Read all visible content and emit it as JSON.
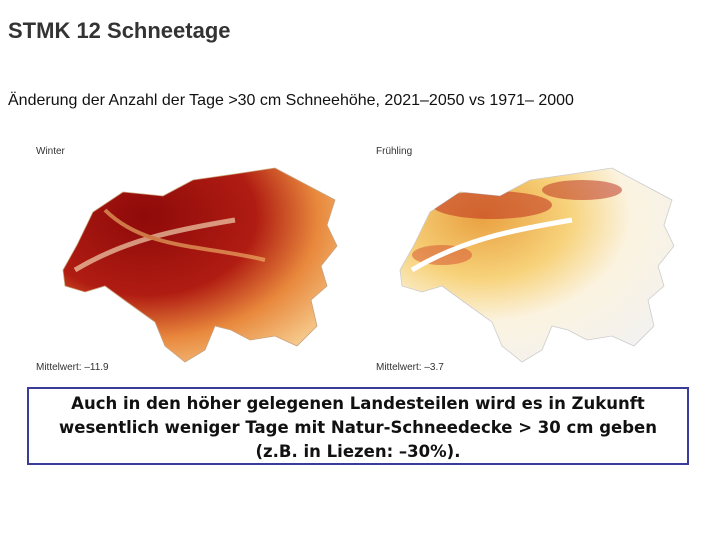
{
  "title": "STMK 12 Schneetage",
  "subtitle": "Änderung der Anzahl der Tage >30 cm Schneehöhe, 2021–2050 vs 1971– 2000",
  "maps": [
    {
      "label": "Winter",
      "mean": "Mittelwert: –11.9"
    },
    {
      "label": "Frühling",
      "mean": "Mittelwert: –3.7"
    }
  ],
  "caption": [
    "Auch in den höher gelegenen Landesteilen wird es in Zukunft",
    "wesentlich weniger Tage mit Natur-Schneedecke > 30 cm geben",
    "(z.B. in Liezen: –30%)."
  ]
}
